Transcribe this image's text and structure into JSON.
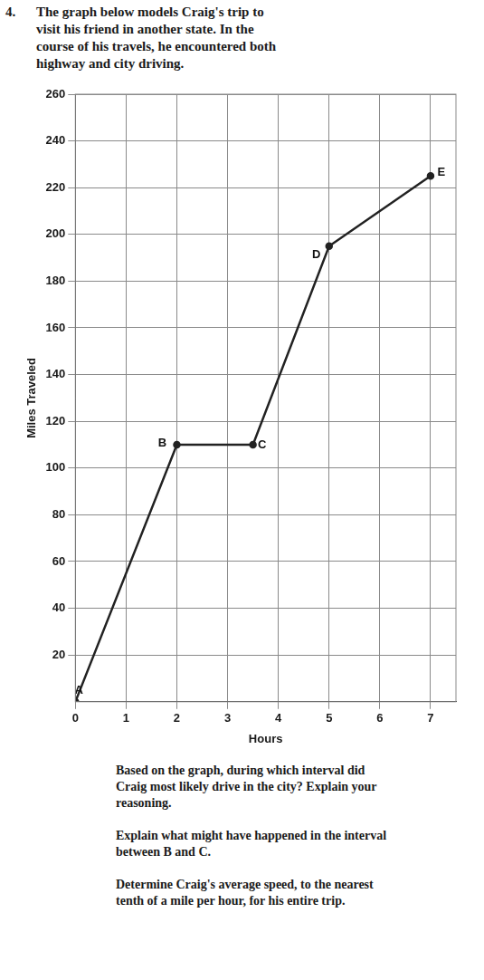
{
  "question": {
    "number": "4.",
    "text": "The graph below models Craig's trip to visit his friend in another state. In the course of his travels, he encountered both highway and city driving."
  },
  "chart_data": {
    "type": "line",
    "x_label": "Hours",
    "y_label": "Miles Traveled",
    "x": [
      0,
      2,
      3.5,
      5,
      7
    ],
    "values": [
      0,
      110,
      110,
      195,
      225
    ],
    "point_labels": [
      "A",
      "B",
      "C",
      "D",
      "E"
    ],
    "xlim": [
      0,
      7.5
    ],
    "xticks": [
      0,
      1,
      2,
      3,
      4,
      5,
      6,
      7
    ],
    "ylim": [
      0,
      260
    ],
    "yticks": [
      20,
      40,
      60,
      80,
      100,
      120,
      140,
      160,
      180,
      200,
      220,
      240,
      260
    ],
    "grid": true,
    "color": "#222222",
    "marker": "circle"
  },
  "prompts": [
    "Based on the graph, during which interval did Craig most likely drive in the city? Explain your reasoning.",
    "Explain what might have happened in the interval between B and C.",
    "Determine Craig's average speed, to the nearest tenth of a mile per hour, for his entire trip."
  ]
}
